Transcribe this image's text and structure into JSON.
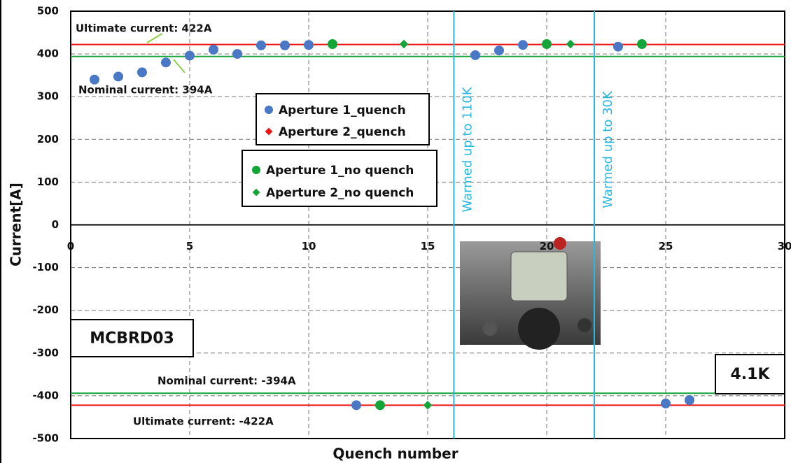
{
  "chart_data": {
    "type": "scatter",
    "x_label": "Quench number",
    "y_label": "Current[A]",
    "xlim": [
      0,
      30
    ],
    "xticks": [
      0,
      5,
      10,
      15,
      20,
      25,
      30
    ],
    "ylim": [
      -500,
      500
    ],
    "yticks": [
      -500,
      -400,
      -300,
      -200,
      -100,
      0,
      100,
      200,
      300,
      400,
      500
    ],
    "grid": true,
    "series": [
      {
        "name": "Aperture 1_quench",
        "color": "#4a78c4",
        "marker": "circle",
        "x": [
          1,
          2,
          3,
          4,
          5,
          6,
          7,
          8,
          9,
          10,
          17,
          18,
          19,
          23,
          12,
          25,
          26
        ],
        "values": [
          340,
          347,
          357,
          380,
          396,
          410,
          400,
          420,
          420,
          421,
          397,
          408,
          421,
          417,
          -422,
          -418,
          -410
        ]
      },
      {
        "name": "Aperture 2_quench",
        "color": "#ee1111",
        "marker": "diamond",
        "x": [],
        "values": []
      },
      {
        "name": "Aperture 1_no quench",
        "color": "#13a538",
        "marker": "circle",
        "x": [
          11,
          20,
          24,
          13
        ],
        "values": [
          423,
          423,
          423,
          -422
        ]
      },
      {
        "name": "Aperture 2_no quench",
        "color": "#13a538",
        "marker": "diamond",
        "x": [
          14,
          21,
          15
        ],
        "values": [
          423,
          423,
          -422
        ]
      }
    ],
    "reference_lines": [
      {
        "value": 422,
        "color": "#ee1111",
        "label": "Ultimate current: 422A"
      },
      {
        "value": 394,
        "color": "#13a538",
        "label": "Nominal current: 394A"
      },
      {
        "value": -394,
        "color": "#13a538",
        "label": "Nominal current: -394A"
      },
      {
        "value": -422,
        "color": "#ee1111",
        "label": "Ultimate current: -422A"
      }
    ],
    "vertical_lines": [
      {
        "value": 16.1,
        "color": "#29b6e0",
        "label": "Warmed up to 110K"
      },
      {
        "value": 22,
        "color": "#29b6e0",
        "label": "Warmed up to 30K"
      }
    ],
    "boxed_labels": [
      "MCBRD03",
      "4.1K"
    ]
  }
}
